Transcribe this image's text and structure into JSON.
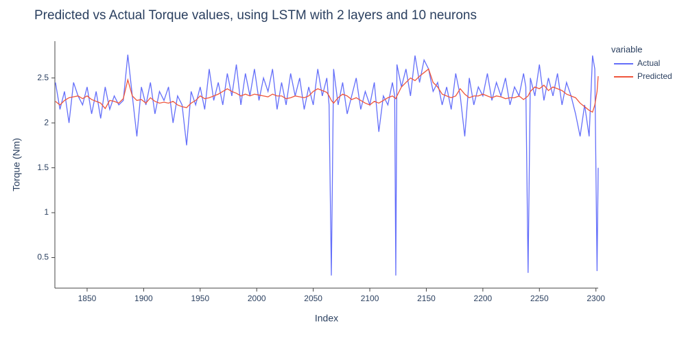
{
  "chart_data": {
    "type": "line",
    "title": "Predicted vs Actual Torque values, using LSTM with 2 layers and 10 neurons",
    "x_label": "Index",
    "y_label": "Torque (Nm)",
    "legend_title": "variable",
    "x": [
      1822,
      1826,
      1830,
      1834,
      1838,
      1842,
      1846,
      1850,
      1854,
      1858,
      1862,
      1866,
      1870,
      1874,
      1878,
      1882,
      1886,
      1890,
      1894,
      1898,
      1902,
      1906,
      1910,
      1914,
      1918,
      1922,
      1926,
      1930,
      1934,
      1938,
      1942,
      1946,
      1950,
      1954,
      1958,
      1962,
      1966,
      1970,
      1974,
      1978,
      1982,
      1986,
      1990,
      1994,
      1998,
      2002,
      2006,
      2010,
      2014,
      2018,
      2022,
      2026,
      2030,
      2034,
      2038,
      2042,
      2046,
      2050,
      2054,
      2058,
      2062,
      2064,
      2066,
      2068,
      2072,
      2076,
      2080,
      2084,
      2088,
      2092,
      2096,
      2100,
      2104,
      2108,
      2112,
      2116,
      2120,
      2122,
      2123,
      2124,
      2128,
      2132,
      2136,
      2140,
      2144,
      2148,
      2152,
      2156,
      2160,
      2164,
      2168,
      2172,
      2176,
      2180,
      2184,
      2188,
      2192,
      2196,
      2200,
      2204,
      2208,
      2212,
      2216,
      2220,
      2224,
      2228,
      2232,
      2236,
      2238,
      2240,
      2242,
      2246,
      2250,
      2254,
      2258,
      2262,
      2266,
      2270,
      2274,
      2278,
      2282,
      2286,
      2290,
      2294,
      2297,
      2299,
      2301,
      2302
    ],
    "series": [
      {
        "name": "Actual",
        "color": "#636efa",
        "values": [
          2.45,
          2.15,
          2.35,
          2.0,
          2.45,
          2.3,
          2.2,
          2.4,
          2.1,
          2.35,
          2.05,
          2.4,
          2.15,
          2.3,
          2.2,
          2.25,
          2.76,
          2.3,
          1.85,
          2.4,
          2.2,
          2.45,
          2.1,
          2.35,
          2.25,
          2.4,
          2.0,
          2.3,
          2.2,
          1.75,
          2.35,
          2.2,
          2.4,
          2.15,
          2.6,
          2.25,
          2.45,
          2.2,
          2.55,
          2.3,
          2.65,
          2.2,
          2.55,
          2.3,
          2.6,
          2.25,
          2.5,
          2.35,
          2.6,
          2.15,
          2.45,
          2.2,
          2.55,
          2.3,
          2.5,
          2.15,
          2.4,
          2.2,
          2.6,
          2.3,
          2.5,
          2.2,
          0.3,
          2.6,
          2.2,
          2.45,
          2.1,
          2.3,
          2.5,
          2.15,
          2.35,
          2.2,
          2.45,
          1.9,
          2.3,
          2.2,
          2.45,
          2.3,
          0.3,
          2.65,
          2.4,
          2.6,
          2.3,
          2.75,
          2.45,
          2.7,
          2.6,
          2.35,
          2.45,
          2.2,
          2.4,
          2.15,
          2.55,
          2.3,
          1.85,
          2.5,
          2.2,
          2.4,
          2.3,
          2.55,
          2.25,
          2.45,
          2.3,
          2.5,
          2.2,
          2.4,
          2.3,
          2.55,
          2.4,
          0.33,
          2.5,
          2.3,
          2.65,
          2.25,
          2.5,
          2.3,
          2.55,
          2.2,
          2.45,
          2.3,
          2.1,
          1.85,
          2.2,
          1.85,
          2.75,
          2.6,
          0.35,
          1.5
        ]
      },
      {
        "name": "Predicted",
        "color": "#ef553b",
        "values": [
          2.24,
          2.2,
          2.25,
          2.28,
          2.29,
          2.3,
          2.27,
          2.3,
          2.26,
          2.24,
          2.22,
          2.16,
          2.25,
          2.24,
          2.22,
          2.27,
          2.48,
          2.3,
          2.25,
          2.26,
          2.22,
          2.28,
          2.24,
          2.22,
          2.23,
          2.22,
          2.24,
          2.2,
          2.18,
          2.17,
          2.22,
          2.25,
          2.3,
          2.27,
          2.28,
          2.3,
          2.32,
          2.35,
          2.38,
          2.35,
          2.33,
          2.3,
          2.32,
          2.3,
          2.32,
          2.31,
          2.3,
          2.29,
          2.32,
          2.3,
          2.3,
          2.27,
          2.28,
          2.3,
          2.29,
          2.28,
          2.3,
          2.35,
          2.38,
          2.36,
          2.34,
          2.3,
          2.25,
          2.22,
          2.28,
          2.32,
          2.3,
          2.26,
          2.28,
          2.25,
          2.22,
          2.2,
          2.24,
          2.22,
          2.25,
          2.28,
          2.3,
          2.28,
          2.27,
          2.3,
          2.4,
          2.45,
          2.5,
          2.47,
          2.52,
          2.56,
          2.6,
          2.45,
          2.4,
          2.32,
          2.3,
          2.28,
          2.3,
          2.38,
          2.32,
          2.28,
          2.3,
          2.3,
          2.32,
          2.3,
          2.28,
          2.3,
          2.29,
          2.27,
          2.28,
          2.28,
          2.3,
          2.26,
          2.28,
          2.3,
          2.35,
          2.4,
          2.38,
          2.42,
          2.36,
          2.4,
          2.38,
          2.36,
          2.32,
          2.3,
          2.28,
          2.22,
          2.18,
          2.14,
          2.12,
          2.2,
          2.35,
          2.52
        ]
      }
    ],
    "xlim": [
      1821.5,
      2302
    ],
    "ylim": [
      0.16,
      2.91
    ],
    "xticks": [
      1850,
      1900,
      1950,
      2000,
      2050,
      2100,
      2150,
      2200,
      2250,
      2300
    ],
    "yticks": [
      0.5,
      1,
      1.5,
      2,
      2.5
    ],
    "grid": false,
    "legend_position": "right"
  }
}
